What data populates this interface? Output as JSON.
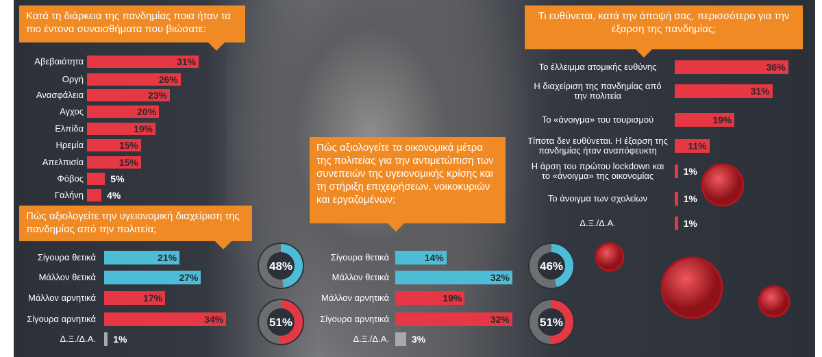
{
  "chart_data": [
    {
      "type": "bar",
      "title": "Κατά τη διάρκεια της πανδημίας ποια ήταν τα πιο έντονα συναισθήματα που βιώσατε:",
      "categories": [
        "Αβεβαιότητα",
        "Οργή",
        "Ανασφάλεια",
        "Αγχος",
        "Ελπίδα",
        "Ηρεμία",
        "Απελπισία",
        "Φόβος",
        "Γαλήνη"
      ],
      "values": [
        31,
        26,
        23,
        20,
        19,
        15,
        15,
        5,
        4
      ],
      "value_labels": [
        "31%",
        "26%",
        "23%",
        "20%",
        "19%",
        "15%",
        "15%",
        "5%",
        "4%"
      ],
      "colors": [
        "#e63744",
        "#e63744",
        "#e63744",
        "#e63744",
        "#e63744",
        "#e63744",
        "#e63744",
        "#e63744",
        "#e63744"
      ]
    },
    {
      "type": "bar",
      "title": "Πώς αξιολογείτε την υγειονομική διαχείριση της πανδημίας από την πολιτεία;",
      "categories": [
        "Σίγουρα θετικά",
        "Μάλλον θετικά",
        "Μάλλον αρνητικά",
        "Σίγουρα αρνητικά",
        "Δ.Ξ./Δ.Α."
      ],
      "values": [
        21,
        27,
        17,
        34,
        1
      ],
      "value_labels": [
        "21%",
        "27%",
        "17%",
        "34%",
        "1%"
      ],
      "colors": [
        "#4dbcd6",
        "#4dbcd6",
        "#e63744",
        "#e63744",
        "#a7a9ac"
      ],
      "totals": {
        "values": [
          48,
          51
        ],
        "value_labels": [
          "48%",
          "51%"
        ],
        "colors": [
          "#4dbcd6",
          "#e63744"
        ]
      }
    },
    {
      "type": "bar",
      "title": "Πώς αξιολογείτε τα οικονομικά μέτρα της πολιτείας για την αντιμετώπιση των συνεπειών της υγειονομικής κρίσης και τη στήριξη επιχειρήσεων, νοικοκυριών και εργαζομένων;",
      "categories": [
        "Σίγουρα θετικά",
        "Μάλλον θετικά",
        "Μάλλον αρνητικά",
        "Σίγουρα αρνητικά",
        "Δ.Ξ./Δ.Α."
      ],
      "values": [
        14,
        32,
        19,
        32,
        3
      ],
      "value_labels": [
        "14%",
        "32%",
        "19%",
        "32%",
        "3%"
      ],
      "colors": [
        "#4dbcd6",
        "#4dbcd6",
        "#e63744",
        "#e63744",
        "#a7a9ac"
      ],
      "totals": {
        "values": [
          46,
          51
        ],
        "value_labels": [
          "46%",
          "51%"
        ],
        "colors": [
          "#4dbcd6",
          "#e63744"
        ]
      }
    },
    {
      "type": "bar",
      "title": "Τι ευθύνεται, κατά την άποψή σας, περισσότερο για την  έξαρση της πανδημίας;",
      "categories": [
        "Το έλλειμμα ατομικής ευθύνης",
        "Η διαχείριση της πανδημίας από την πολιτεία",
        "Το «άνοιγμα» του τουρισμού",
        "Τίποτα δεν ευθύνεται. Η έξαρση της πανδημίας ήταν αναπόφευκτη",
        "Η άρση του πρώτου lockdown και το «άνοιγμα» της οικονομίας",
        "Το άνοιγμα των σχολείων",
        "Δ.Ξ./Δ.Α."
      ],
      "values": [
        36,
        31,
        19,
        11,
        1,
        1,
        1
      ],
      "value_labels": [
        "36%",
        "31%",
        "19%",
        "11%",
        "1%",
        "1%",
        "1%"
      ],
      "colors": [
        "#e63744",
        "#e63744",
        "#e63744",
        "#e63744",
        "#e63744",
        "#e63744",
        "#e63744"
      ]
    }
  ]
}
